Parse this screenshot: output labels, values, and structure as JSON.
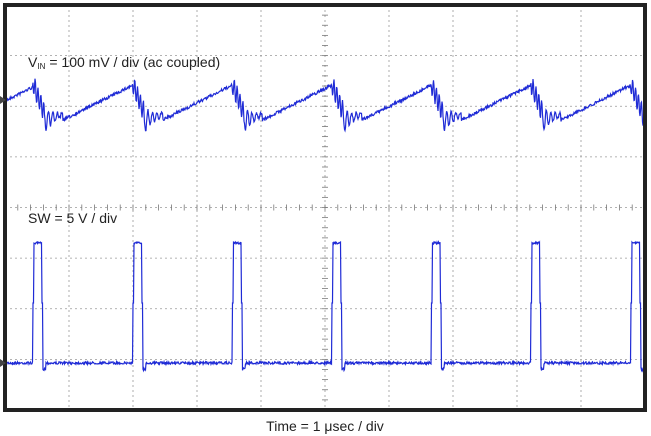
{
  "vin_label": {
    "symbol": "V",
    "subscript": "IN",
    "rest": "= 100 mV / div (ac coupled)"
  },
  "sw_label": "SW = 5 V / div",
  "time_label": "Time = 1 μsec / div"
}
